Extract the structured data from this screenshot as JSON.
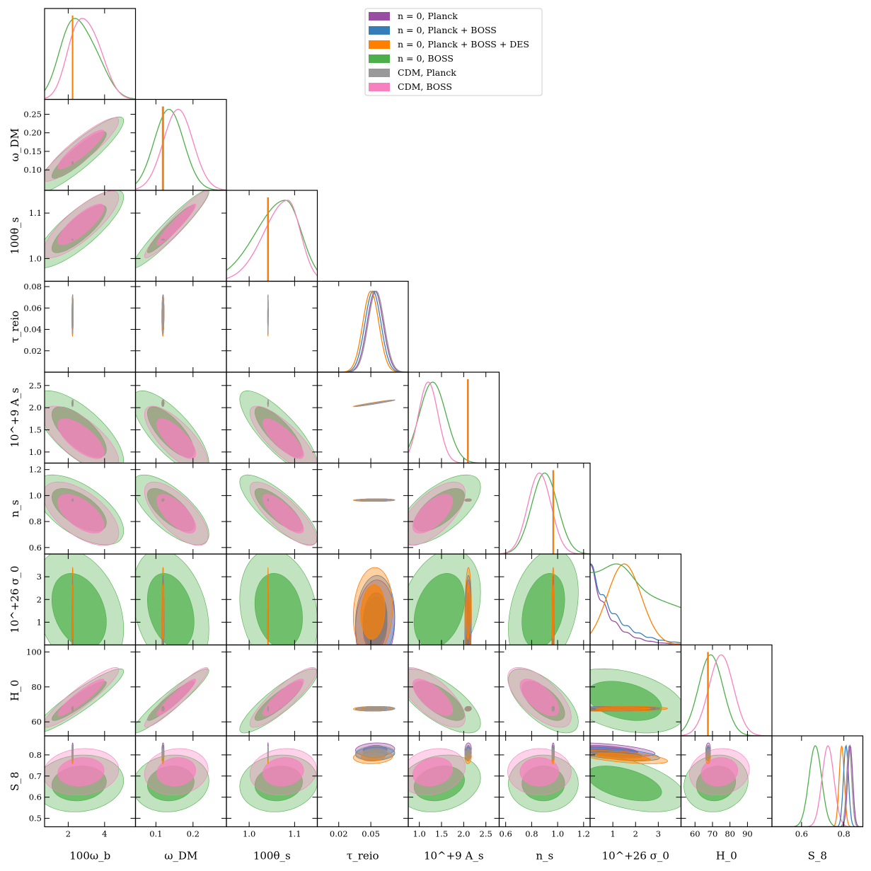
{
  "chart_data": {
    "type": "corner",
    "colors": {
      "n0_planck": "#984ea3",
      "n0_planck_boss": "#377eb8",
      "n0_planck_boss_des": "#ff7f00",
      "n0_boss": "#4daf4a",
      "cdm_planck": "#999999",
      "cdm_boss": "#f781bf"
    },
    "legend": {
      "placement": "top-right",
      "entries": [
        {
          "key": "n0_planck",
          "label": "n = 0, Planck"
        },
        {
          "key": "n0_planck_boss",
          "label": "n = 0, Planck + BOSS"
        },
        {
          "key": "n0_planck_boss_des",
          "label": "n = 0, Planck + BOSS + DES"
        },
        {
          "key": "n0_boss",
          "label": "n = 0, BOSS"
        },
        {
          "key": "cdm_planck",
          "label": "CDM, Planck"
        },
        {
          "key": "cdm_boss",
          "label": "CDM, BOSS"
        }
      ]
    },
    "parameters": [
      {
        "id": "wb",
        "label": "100ω_b",
        "range": [
          0.7,
          5.7
        ],
        "ticks": [
          2,
          4
        ],
        "tick_labels": [
          "2",
          "4"
        ]
      },
      {
        "id": "wdm",
        "label": "ω_DM",
        "range": [
          0.045,
          0.29
        ],
        "ticks": [
          0.1,
          0.15,
          0.2,
          0.25
        ],
        "tick_labels": [
          "0.10",
          "0.15",
          "0.20",
          "0.25"
        ],
        "x_tick_labels": [
          "0.1",
          "0.2"
        ],
        "x_ticks": [
          0.1,
          0.2
        ]
      },
      {
        "id": "th",
        "label": "100θ_s",
        "range": [
          0.95,
          1.15
        ],
        "ticks": [
          1.0,
          1.1
        ],
        "tick_labels": [
          "1.0",
          "1.1"
        ]
      },
      {
        "id": "tau",
        "label": "τ_reio",
        "range": [
          0.0,
          0.085
        ],
        "ticks": [
          0.02,
          0.04,
          0.06,
          0.08
        ],
        "tick_labels": [
          "0.02",
          "0.04",
          "0.06",
          "0.08"
        ],
        "x_tick_labels": [
          "0.02",
          "0.05"
        ],
        "x_ticks": [
          0.02,
          0.05
        ]
      },
      {
        "id": "As",
        "label": "10^+9 A_s",
        "range": [
          0.75,
          2.8
        ],
        "ticks": [
          1.0,
          1.5,
          2.0,
          2.5
        ],
        "tick_labels": [
          "1.0",
          "1.5",
          "2.0",
          "2.5"
        ]
      },
      {
        "id": "ns",
        "label": "n_s",
        "range": [
          0.55,
          1.25
        ],
        "ticks": [
          0.6,
          0.8,
          1.0,
          1.2
        ],
        "tick_labels": [
          "0.6",
          "0.8",
          "1.0",
          "1.2"
        ]
      },
      {
        "id": "sig",
        "label": "10^+26 σ_0",
        "range": [
          0.0,
          4.0
        ],
        "ticks": [
          1,
          2,
          3
        ],
        "tick_labels": [
          "1",
          "2",
          "3"
        ]
      },
      {
        "id": "H0",
        "label": "H_0",
        "range": [
          52,
          104
        ],
        "ticks": [
          60,
          80,
          100
        ],
        "tick_labels": [
          "60",
          "80",
          "100"
        ],
        "x_tick_labels": [
          "60",
          "70",
          "80",
          "90"
        ],
        "x_ticks": [
          60,
          70,
          80,
          90
        ]
      },
      {
        "id": "S8",
        "label": "S_8",
        "range": [
          0.46,
          0.89
        ],
        "ticks": [
          0.5,
          0.6,
          0.7,
          0.8
        ],
        "tick_labels": [
          "0.5",
          "0.6",
          "0.7",
          "0.8"
        ],
        "x_tick_labels": [
          "0.6",
          "0.8"
        ],
        "x_ticks": [
          0.6,
          0.8
        ]
      }
    ],
    "marginals": {
      "wb": [
        {
          "key": "n0_boss",
          "type": "gauss2",
          "m1": 2.1,
          "s1": 0.7,
          "m2": 3.3,
          "s2": 0.8,
          "w2": 0.7
        },
        {
          "key": "cdm_boss",
          "type": "gauss2",
          "m1": 2.4,
          "s1": 0.6,
          "m2": 3.4,
          "s2": 0.7,
          "w2": 1.0
        },
        {
          "key": "cdm_planck",
          "type": "spike",
          "x": 2.24
        },
        {
          "key": "n0_planck_boss_des",
          "type": "spike",
          "x": 2.24
        }
      ],
      "wdm": [
        {
          "key": "n0_boss",
          "type": "gauss",
          "m": 0.135,
          "s": 0.04
        },
        {
          "key": "cdm_boss",
          "type": "gauss",
          "m": 0.16,
          "s": 0.04
        },
        {
          "key": "cdm_planck",
          "type": "spike",
          "x": 0.12
        },
        {
          "key": "n0_planck_boss_des",
          "type": "spike",
          "x": 0.118
        }
      ],
      "th": [
        {
          "key": "n0_boss",
          "type": "skew",
          "m": 1.08,
          "s": 0.05
        },
        {
          "key": "cdm_boss",
          "type": "skew",
          "m": 1.085,
          "s": 0.04
        },
        {
          "key": "cdm_planck",
          "type": "spike",
          "x": 1.042
        },
        {
          "key": "n0_planck_boss_des",
          "type": "spike",
          "x": 1.041
        }
      ],
      "tau": [
        {
          "key": "n0_planck",
          "type": "gauss",
          "m": 0.054,
          "s": 0.0075
        },
        {
          "key": "cdm_planck",
          "type": "gauss",
          "m": 0.055,
          "s": 0.0075
        },
        {
          "key": "n0_planck_boss",
          "type": "gauss",
          "m": 0.052,
          "s": 0.0075
        },
        {
          "key": "n0_planck_boss_des",
          "type": "gauss",
          "m": 0.05,
          "s": 0.0075
        }
      ],
      "As": [
        {
          "key": "n0_boss",
          "type": "gauss",
          "m": 1.3,
          "s": 0.3
        },
        {
          "key": "cdm_boss",
          "type": "gauss",
          "m": 1.2,
          "s": 0.22
        },
        {
          "key": "cdm_planck",
          "type": "spike",
          "x": 2.1
        },
        {
          "key": "n0_planck_boss_des",
          "type": "spike",
          "x": 2.09
        }
      ],
      "ns": [
        {
          "key": "n0_boss",
          "type": "gauss",
          "m": 0.9,
          "s": 0.1
        },
        {
          "key": "cdm_boss",
          "type": "gauss",
          "m": 0.86,
          "s": 0.09
        },
        {
          "key": "cdm_planck",
          "type": "spike",
          "x": 0.965
        },
        {
          "key": "n0_planck_boss_des",
          "type": "spike",
          "x": 0.967
        }
      ],
      "sig": [
        {
          "key": "n0_planck",
          "type": "decay",
          "scale": 0.85
        },
        {
          "key": "n0_planck_boss",
          "type": "decay",
          "scale": 1.1
        },
        {
          "key": "n0_planck_boss_des",
          "type": "gauss",
          "m": 1.5,
          "s": 0.75
        },
        {
          "key": "n0_boss",
          "type": "flatish"
        }
      ],
      "H0": [
        {
          "key": "n0_boss",
          "type": "gauss",
          "m": 69,
          "s": 7
        },
        {
          "key": "cdm_boss",
          "type": "gauss",
          "m": 75,
          "s": 7
        },
        {
          "key": "cdm_planck",
          "type": "spike",
          "x": 67.5
        },
        {
          "key": "n0_planck_boss_des",
          "type": "spike",
          "x": 67.3
        }
      ],
      "S8": [
        {
          "key": "n0_boss",
          "type": "gauss",
          "m": 0.665,
          "s": 0.03
        },
        {
          "key": "cdm_boss",
          "type": "gauss",
          "m": 0.725,
          "s": 0.028
        },
        {
          "key": "n0_planck_boss_des",
          "type": "gauss",
          "m": 0.79,
          "s": 0.012
        },
        {
          "key": "n0_planck_boss",
          "type": "gauss",
          "m": 0.81,
          "s": 0.012
        },
        {
          "key": "cdm_planck",
          "type": "gauss",
          "m": 0.825,
          "s": 0.012
        },
        {
          "key": "n0_planck",
          "type": "gauss",
          "m": 0.83,
          "s": 0.012
        }
      ]
    },
    "boss_posteriors": {
      "n0_boss": {
        "means": {
          "wb": 2.6,
          "wdm": 0.14,
          "th": 1.065,
          "tau": 0.055,
          "As": 1.45,
          "ns": 0.89,
          "sig": 1.5,
          "H0": 72,
          "S8": 0.665
        },
        "sds": {
          "wb": 1.0,
          "wdm": 0.042,
          "th": 0.035,
          "tau": 0.008,
          "As": 0.38,
          "ns": 0.11,
          "sig": 1.1,
          "H0": 7.5,
          "S8": 0.055
        },
        "corr": {
          "wb-wdm": 0.9,
          "wb-th": 0.82,
          "wb-As": -0.7,
          "wb-ns": -0.6,
          "wb-H0": 0.92,
          "wb-S8": 0.1,
          "wdm-th": 0.95,
          "wdm-As": -0.75,
          "wdm-ns": -0.7,
          "wdm-H0": 0.94,
          "wdm-S8": 0.1,
          "th-As": -0.8,
          "th-ns": -0.8,
          "th-H0": 0.88,
          "th-S8": 0.1,
          "As-ns": 0.65,
          "As-H0": -0.7,
          "As-S8": 0.2,
          "ns-H0": -0.65,
          "ns-S8": 0.0,
          "H0-S8": 0.1,
          "sig-wb": -0.3,
          "sig-wdm": -0.3,
          "sig-th": -0.2,
          "sig-As": 0.3,
          "sig-ns": 0.3,
          "sig-H0": -0.35,
          "sig-S8": -0.5
        }
      },
      "cdm_boss": {
        "means": {
          "wb": 2.7,
          "wdm": 0.155,
          "th": 1.075,
          "tau": 0.055,
          "As": 1.3,
          "ns": 0.86,
          "sig": 0,
          "H0": 74,
          "S8": 0.72
        },
        "sds": {
          "wb": 0.85,
          "wdm": 0.035,
          "th": 0.03,
          "tau": 0.008,
          "As": 0.3,
          "ns": 0.1,
          "sig": 0,
          "H0": 7,
          "S8": 0.045
        },
        "corr": {
          "wb-wdm": 0.9,
          "wb-th": 0.82,
          "wb-As": -0.7,
          "wb-ns": -0.6,
          "wb-H0": 0.92,
          "wb-S8": 0.1,
          "wdm-th": 0.95,
          "wdm-As": -0.75,
          "wdm-ns": -0.7,
          "wdm-H0": 0.94,
          "wdm-S8": 0.1,
          "th-As": -0.8,
          "th-ns": -0.8,
          "th-H0": 0.88,
          "th-S8": 0.1,
          "As-ns": 0.65,
          "As-H0": -0.7,
          "As-S8": 0.2,
          "ns-H0": -0.65,
          "ns-S8": 0.0,
          "H0-S8": 0.1
        }
      }
    },
    "planck_posteriors": {
      "means": {
        "wb": 2.24,
        "wdm": 0.119,
        "th": 1.0415,
        "tau": 0.054,
        "As": 2.1,
        "ns": 0.965,
        "sig": 1.2,
        "H0": 67.5,
        "S8": 0.81
      },
      "sds": {
        "wb": 0.015,
        "wdm": 0.0012,
        "th": 0.0003,
        "tau": 0.0075,
        "As": 0.03,
        "ns": 0.004,
        "sig": 0.8,
        "H0": 0.55,
        "S8": 0.013
      }
    }
  }
}
